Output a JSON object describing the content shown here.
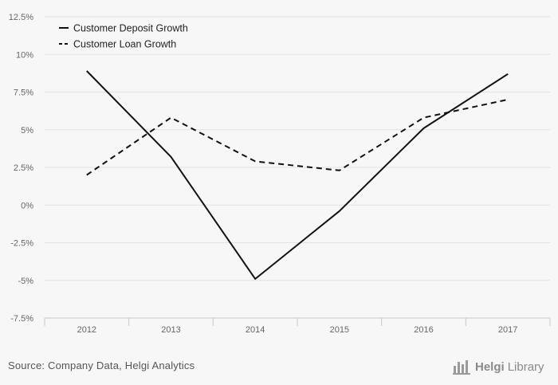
{
  "chart_data": {
    "type": "line",
    "categories": [
      "2012",
      "2013",
      "2014",
      "2015",
      "2016",
      "2017"
    ],
    "series": [
      {
        "name": "Customer Deposit Growth",
        "style": "solid",
        "color": "#111111",
        "values": [
          8.9,
          3.2,
          -4.9,
          -0.4,
          5.1,
          8.7
        ]
      },
      {
        "name": "Customer Loan Growth",
        "style": "dashed",
        "color": "#111111",
        "values": [
          2.0,
          5.8,
          2.9,
          2.3,
          5.8,
          7.0
        ]
      }
    ],
    "ylim": [
      -7.5,
      12.5
    ],
    "yticks": [
      "12.5%",
      "10%",
      "7.5%",
      "5%",
      "2.5%",
      "0%",
      "-2.5%",
      "-5%",
      "-7.5%"
    ],
    "ytick_values": [
      12.5,
      10,
      7.5,
      5,
      2.5,
      0,
      -2.5,
      -5,
      -7.5
    ],
    "grid": true,
    "legend_position": "top-left"
  },
  "footer": {
    "source": "Source: Company Data, Helgi Analytics",
    "brand_name": "Helgi",
    "brand_suffix": "Library"
  },
  "colors": {
    "background": "#f7f7f7",
    "grid": "#e2e2e2",
    "axis": "#c8c8c8",
    "line": "#111111"
  },
  "icons": {
    "brand_logo": "bar-stack-icon"
  }
}
